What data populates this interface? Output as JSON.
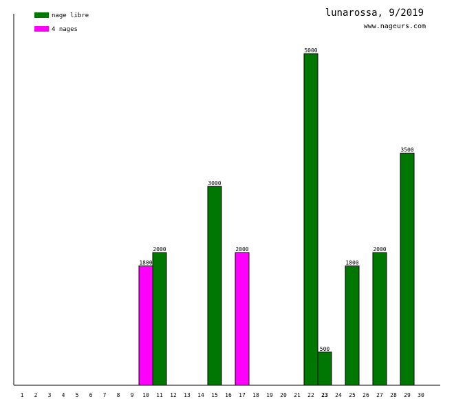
{
  "chart_data": {
    "type": "bar",
    "title": "lunarossa, 9/2019",
    "subtitle": "www.nageurs.com",
    "categories": [
      "1",
      "2",
      "3",
      "4",
      "5",
      "6",
      "7",
      "8",
      "9",
      "10",
      "11",
      "12",
      "13",
      "14",
      "15",
      "16",
      "17",
      "18",
      "19",
      "20",
      "21",
      "22",
      "23",
      "24",
      "25",
      "26",
      "27",
      "28",
      "29",
      "30"
    ],
    "highlighted_category": "23",
    "ylim": [
      0,
      5000
    ],
    "grid": false,
    "legend_position": "top-left",
    "series": [
      {
        "name": "nage libre",
        "color": "#007700",
        "points": [
          {
            "day": 11,
            "value": 2000
          },
          {
            "day": 15,
            "value": 3000
          },
          {
            "day": 22,
            "value": 5000
          },
          {
            "day": 23,
            "value": 500
          },
          {
            "day": 25,
            "value": 1800
          },
          {
            "day": 27,
            "value": 2000
          },
          {
            "day": 29,
            "value": 3500
          }
        ]
      },
      {
        "name": "4 nages",
        "color": "#ff00ff",
        "points": [
          {
            "day": 10,
            "value": 1800
          },
          {
            "day": 17,
            "value": 2000
          }
        ]
      }
    ]
  }
}
